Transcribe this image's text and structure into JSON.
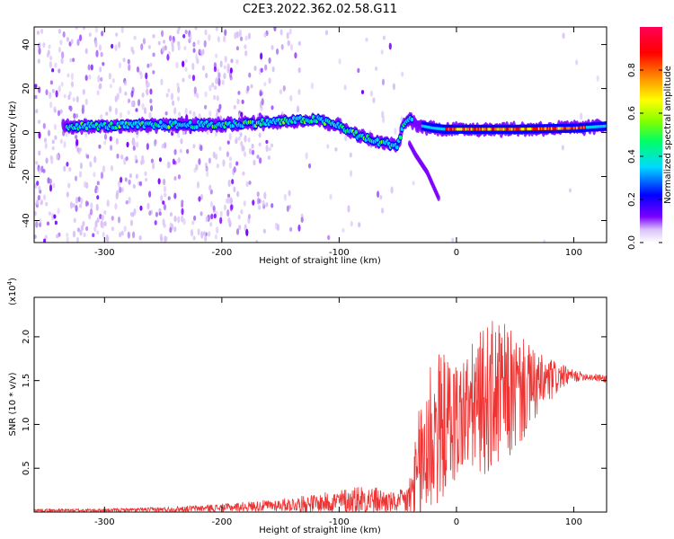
{
  "figure": {
    "title": "C2E3.2022.362.02.58.G11"
  },
  "chart_data": [
    {
      "type": "heatmap",
      "xlabel": "Height of straight line (km)",
      "ylabel": "Frequency (Hz)",
      "xlim": [
        -360,
        128
      ],
      "ylim": [
        -50,
        48
      ],
      "xticks": [
        -300,
        -200,
        -100,
        0,
        100
      ],
      "yticks": [
        -40,
        -20,
        0,
        20,
        40
      ],
      "grid": false,
      "colorbar": {
        "label": "Normalized spectral amplitude",
        "range": [
          0,
          1
        ],
        "ticks": [
          "0.0",
          "0.2",
          "0.4",
          "0.6",
          "0.8"
        ],
        "colormap": [
          "#ffffff",
          "#d9c2f7",
          "#7a00ff",
          "#0000ff",
          "#00d9ff",
          "#00ff66",
          "#7fff00",
          "#ffff00",
          "#ff8800",
          "#ff0000",
          "#ff0055"
        ]
      },
      "ridge": {
        "x": [
          -340,
          -300,
          -250,
          -200,
          -150,
          -120,
          -100,
          -85,
          -70,
          -60,
          -50,
          -45,
          -40,
          -35,
          -30,
          -20,
          -10,
          0,
          50,
          100,
          128
        ],
        "y": [
          3,
          3,
          3.5,
          3.5,
          5,
          6,
          3,
          -1,
          -4,
          -5,
          -6,
          4,
          6,
          4,
          3,
          2,
          1.5,
          1.5,
          1.5,
          2,
          3
        ]
      },
      "branch": {
        "x": [
          -40,
          -35,
          -30,
          -25,
          -20,
          -15
        ],
        "y": [
          -5,
          -10,
          -14,
          -18,
          -24,
          -30
        ]
      }
    },
    {
      "type": "line",
      "xlabel": "Height of straight line (km)",
      "ylabel": "SNR (10 * v/v)",
      "y_multiplier": "(x10",
      "y_multiplier_exp": "4",
      "y_multiplier_close": ")",
      "xlim": [
        -360,
        128
      ],
      "ylim": [
        0,
        2.45
      ],
      "xticks": [
        -300,
        -200,
        -100,
        0,
        100
      ],
      "yticks": [
        "0.5",
        "1.0",
        "1.5",
        "2.0"
      ],
      "grid": false,
      "series": [
        {
          "color": "#ee3333",
          "envelope_x": [
            -360,
            -300,
            -250,
            -200,
            -150,
            -120,
            -100,
            -80,
            -60,
            -50,
            -40,
            -35,
            -30,
            -25,
            -20,
            -15,
            -10,
            0,
            10,
            20,
            30,
            40,
            50,
            60,
            70,
            80,
            90,
            100,
            110,
            128
          ],
          "envelope_mean": [
            0.02,
            0.02,
            0.03,
            0.05,
            0.08,
            0.1,
            0.12,
            0.15,
            0.12,
            0.1,
            0.15,
            0.3,
            0.5,
            0.8,
            0.9,
            0.95,
            1.0,
            1.05,
            1.15,
            1.25,
            1.3,
            1.35,
            1.35,
            1.4,
            1.45,
            1.5,
            1.55,
            1.55,
            1.55,
            1.52
          ],
          "envelope_amp": [
            0.02,
            0.02,
            0.03,
            0.05,
            0.08,
            0.12,
            0.15,
            0.2,
            0.15,
            0.12,
            0.3,
            0.6,
            1.0,
            1.2,
            1.1,
            1.0,
            0.9,
            0.8,
            0.8,
            0.9,
            1.0,
            0.9,
            0.8,
            0.6,
            0.4,
            0.3,
            0.15,
            0.08,
            0.05,
            0.05
          ]
        }
      ]
    }
  ]
}
